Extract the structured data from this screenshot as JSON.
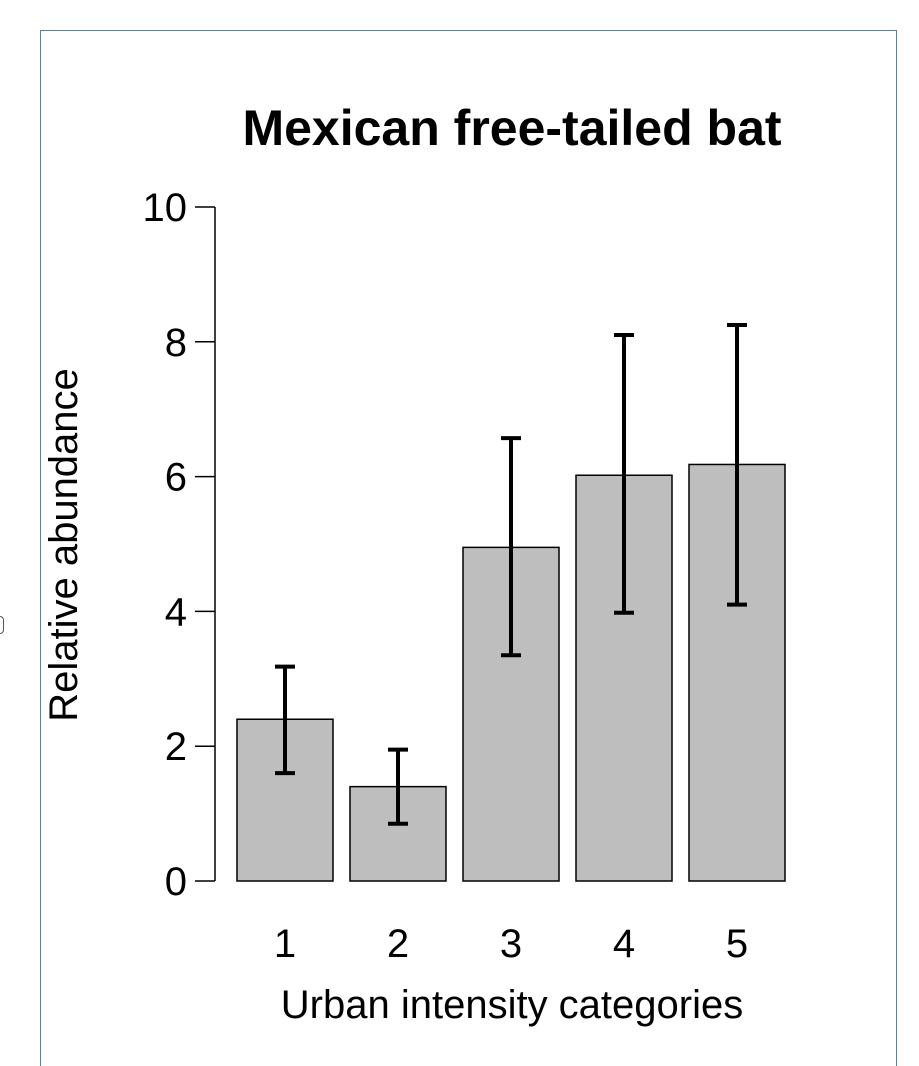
{
  "chart_data": {
    "type": "bar",
    "title": "Mexican free-tailed bat",
    "xlabel": "Urban intensity categories",
    "ylabel": "Relative abundance",
    "categories": [
      "1",
      "2",
      "3",
      "4",
      "5"
    ],
    "values": [
      2.4,
      1.4,
      4.95,
      6.02,
      6.18
    ],
    "error_low": [
      1.6,
      0.85,
      3.35,
      3.98,
      4.1
    ],
    "error_high": [
      3.18,
      1.95,
      6.57,
      8.1,
      8.25
    ],
    "ylim": [
      0,
      10
    ],
    "yticks": [
      "0",
      "2",
      "4",
      "6",
      "8",
      "10"
    ],
    "grid": false,
    "bar_color": "#bebebe",
    "frame_color": "#4f81bd"
  }
}
